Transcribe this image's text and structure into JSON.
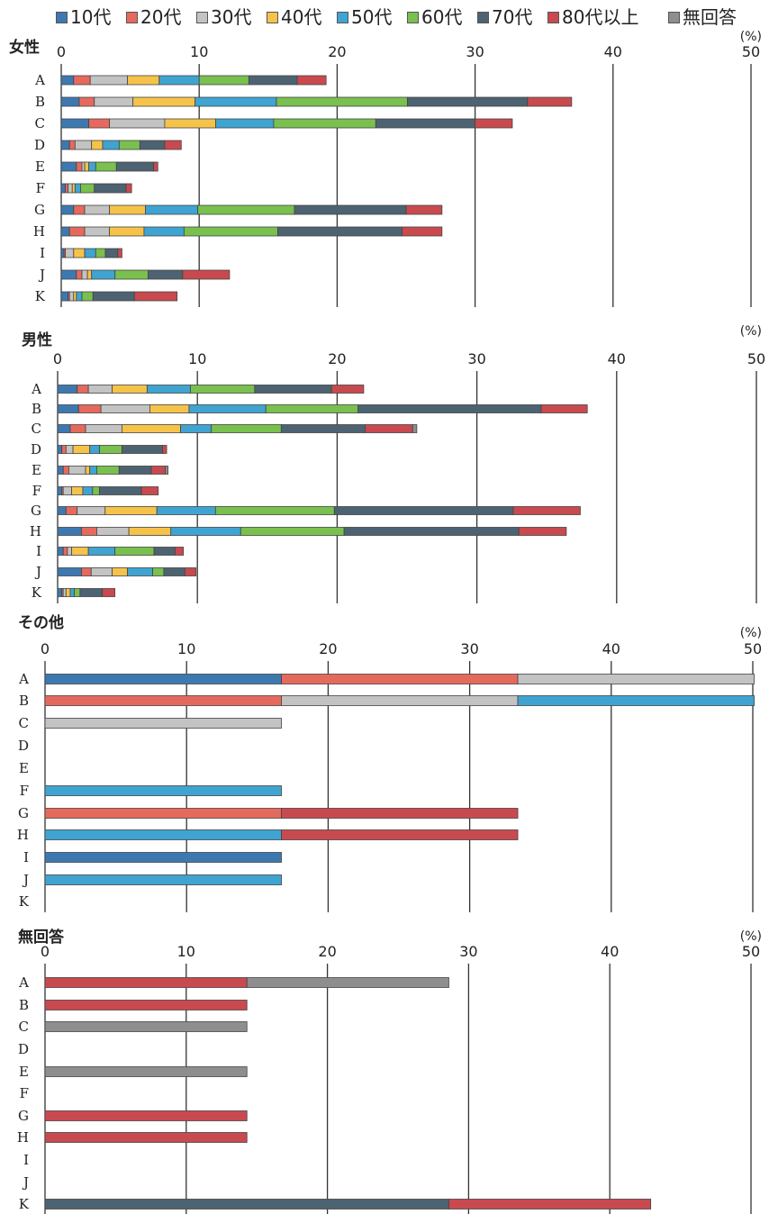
{
  "legend": [
    {
      "label": "10代",
      "color": "#3d79b0"
    },
    {
      "label": "20代",
      "color": "#e56a5d"
    },
    {
      "label": "30代",
      "color": "#c3c3c3"
    },
    {
      "label": "40代",
      "color": "#f6c34a"
    },
    {
      "label": "50代",
      "color": "#3fa4d1"
    },
    {
      "label": "60代",
      "color": "#79c04f"
    },
    {
      "label": "70代",
      "color": "#4d6372"
    },
    {
      "label": "80代以上",
      "color": "#c84a4f"
    },
    {
      "label": "無回答",
      "color": "#8e8e8e"
    }
  ],
  "chart_data": [
    {
      "type": "bar",
      "orientation": "horizontal",
      "stacked": true,
      "title": "女性",
      "unit": "(%)",
      "xlim": [
        0,
        50
      ],
      "xticks": [
        0,
        10,
        20,
        30,
        40,
        50
      ],
      "grid": true,
      "categories": [
        "A",
        "B",
        "C",
        "D",
        "E",
        "F",
        "G",
        "H",
        "I",
        "J",
        "K"
      ],
      "series": [
        {
          "name": "10代",
          "values": [
            0.9,
            1.3,
            2.0,
            0.6,
            1.1,
            0.3,
            0.9,
            0.6,
            0.2,
            1.1,
            0.5
          ]
        },
        {
          "name": "20代",
          "values": [
            1.2,
            1.1,
            1.5,
            0.4,
            0.4,
            0.2,
            0.8,
            1.1,
            0.1,
            0.4,
            0.1
          ]
        },
        {
          "name": "30代",
          "values": [
            2.7,
            2.8,
            4.0,
            1.2,
            0.2,
            0.3,
            1.8,
            1.8,
            0.6,
            0.4,
            0.3
          ]
        },
        {
          "name": "40代",
          "values": [
            2.3,
            4.5,
            3.7,
            0.8,
            0.3,
            0.2,
            2.6,
            2.5,
            0.8,
            0.3,
            0.2
          ]
        },
        {
          "name": "50代",
          "values": [
            2.9,
            5.9,
            4.2,
            1.2,
            0.5,
            0.4,
            3.8,
            2.9,
            0.8,
            1.7,
            0.4
          ]
        },
        {
          "name": "60代",
          "values": [
            3.6,
            9.5,
            7.4,
            1.5,
            1.5,
            1.0,
            7.0,
            6.8,
            0.7,
            2.4,
            0.8
          ]
        },
        {
          "name": "70代",
          "values": [
            3.5,
            8.7,
            7.2,
            1.8,
            2.7,
            2.3,
            8.1,
            9.0,
            0.9,
            2.5,
            3.0
          ]
        },
        {
          "name": "80代以上",
          "values": [
            2.1,
            3.2,
            2.7,
            1.2,
            0.3,
            0.4,
            2.6,
            2.9,
            0.3,
            3.4,
            3.1
          ]
        },
        {
          "name": "無回答",
          "values": [
            0,
            0,
            0,
            0,
            0,
            0,
            0,
            0,
            0,
            0,
            0
          ]
        }
      ]
    },
    {
      "type": "bar",
      "orientation": "horizontal",
      "stacked": true,
      "title": "男性",
      "unit": "(%)",
      "xlim": [
        0,
        50
      ],
      "xticks": [
        0,
        10,
        20,
        30,
        40,
        50
      ],
      "grid": true,
      "categories": [
        "A",
        "B",
        "C",
        "D",
        "E",
        "F",
        "G",
        "H",
        "I",
        "J",
        "K"
      ],
      "series": [
        {
          "name": "10代",
          "values": [
            1.4,
            1.5,
            0.9,
            0.3,
            0.4,
            0.3,
            0.6,
            1.7,
            0.4,
            1.7,
            0.3
          ]
        },
        {
          "name": "20代",
          "values": [
            0.8,
            1.6,
            1.1,
            0.3,
            0.4,
            0.1,
            0.8,
            1.1,
            0.3,
            0.7,
            0.1
          ]
        },
        {
          "name": "30代",
          "values": [
            1.7,
            3.5,
            2.6,
            0.5,
            1.2,
            0.6,
            2.0,
            2.3,
            0.3,
            1.5,
            0.2
          ]
        },
        {
          "name": "40代",
          "values": [
            2.5,
            2.8,
            4.2,
            1.2,
            0.3,
            0.8,
            3.7,
            3.0,
            1.2,
            1.1,
            0.3
          ]
        },
        {
          "name": "50代",
          "values": [
            3.1,
            5.5,
            2.2,
            0.7,
            0.5,
            0.7,
            4.2,
            5.0,
            1.9,
            1.8,
            0.3
          ]
        },
        {
          "name": "60代",
          "values": [
            4.6,
            6.6,
            5.0,
            1.6,
            1.6,
            0.5,
            8.5,
            7.4,
            2.8,
            0.8,
            0.4
          ]
        },
        {
          "name": "70代",
          "values": [
            5.5,
            13.1,
            6.0,
            2.9,
            2.3,
            3.0,
            12.8,
            12.5,
            1.5,
            1.5,
            1.6
          ]
        },
        {
          "name": "80代以上",
          "values": [
            2.3,
            3.3,
            3.4,
            0.3,
            1.0,
            1.2,
            4.8,
            3.4,
            0.6,
            0.8,
            0.9
          ]
        },
        {
          "name": "無回答",
          "values": [
            0,
            0,
            0.3,
            0,
            0.2,
            0,
            0,
            0,
            0,
            0,
            0
          ]
        }
      ]
    },
    {
      "type": "bar",
      "orientation": "horizontal",
      "stacked": true,
      "title": "その他",
      "unit": "(%)",
      "xlim": [
        0,
        50
      ],
      "xticks": [
        0,
        10,
        20,
        30,
        40,
        50
      ],
      "grid": true,
      "categories": [
        "A",
        "B",
        "C",
        "D",
        "E",
        "F",
        "G",
        "H",
        "I",
        "J",
        "K"
      ],
      "series": [
        {
          "name": "10代",
          "values": [
            16.7,
            0,
            0,
            0,
            0,
            0,
            0,
            0,
            16.7,
            0,
            0
          ]
        },
        {
          "name": "20代",
          "values": [
            16.7,
            16.7,
            0,
            0,
            0,
            0,
            16.7,
            0,
            0,
            0,
            0
          ]
        },
        {
          "name": "30代",
          "values": [
            16.7,
            16.7,
            16.7,
            0,
            0,
            0,
            0,
            0,
            0,
            0,
            0
          ]
        },
        {
          "name": "40代",
          "values": [
            0,
            0,
            0,
            0,
            0,
            0,
            0,
            0,
            0,
            0,
            0
          ]
        },
        {
          "name": "50代",
          "values": [
            0,
            16.7,
            0,
            0,
            0,
            16.7,
            0,
            16.7,
            0,
            16.7,
            0
          ]
        },
        {
          "name": "60代",
          "values": [
            0,
            0,
            0,
            0,
            0,
            0,
            0,
            0,
            0,
            0,
            0
          ]
        },
        {
          "name": "70代",
          "values": [
            0,
            0,
            0,
            0,
            0,
            0,
            0,
            0,
            0,
            0,
            0
          ]
        },
        {
          "name": "80代以上",
          "values": [
            0,
            0,
            0,
            0,
            0,
            0,
            16.7,
            16.7,
            0,
            0,
            0
          ]
        },
        {
          "name": "無回答",
          "values": [
            0,
            0,
            0,
            0,
            0,
            0,
            0,
            0,
            0,
            0,
            0
          ]
        }
      ]
    },
    {
      "type": "bar",
      "orientation": "horizontal",
      "stacked": true,
      "title": "無回答",
      "unit": "(%)",
      "xlim": [
        0,
        50
      ],
      "xticks": [
        0,
        10,
        20,
        30,
        40,
        50
      ],
      "grid": true,
      "categories": [
        "A",
        "B",
        "C",
        "D",
        "E",
        "F",
        "G",
        "H",
        "I",
        "J",
        "K"
      ],
      "series": [
        {
          "name": "10代",
          "values": [
            0,
            0,
            0,
            0,
            0,
            0,
            0,
            0,
            0,
            0,
            0
          ]
        },
        {
          "name": "20代",
          "values": [
            0,
            0,
            0,
            0,
            0,
            0,
            0,
            0,
            0,
            0,
            0
          ]
        },
        {
          "name": "30代",
          "values": [
            0,
            0,
            0,
            0,
            0,
            0,
            0,
            0,
            0,
            0,
            0
          ]
        },
        {
          "name": "40代",
          "values": [
            0,
            0,
            0,
            0,
            0,
            0,
            0,
            0,
            0,
            0,
            0
          ]
        },
        {
          "name": "50代",
          "values": [
            0,
            0,
            0,
            0,
            0,
            0,
            0,
            0,
            0,
            0,
            0
          ]
        },
        {
          "name": "60代",
          "values": [
            0,
            0,
            0,
            0,
            0,
            0,
            0,
            0,
            0,
            0,
            0
          ]
        },
        {
          "name": "70代",
          "values": [
            0,
            0,
            0,
            0,
            0,
            0,
            0,
            0,
            0,
            0,
            28.6
          ]
        },
        {
          "name": "80代以上",
          "values": [
            14.3,
            14.3,
            0,
            0,
            0,
            0,
            14.3,
            14.3,
            0,
            0,
            14.3
          ]
        },
        {
          "name": "無回答",
          "values": [
            14.3,
            0,
            14.3,
            0,
            14.3,
            0,
            0,
            0,
            0,
            0,
            0
          ]
        }
      ]
    }
  ]
}
